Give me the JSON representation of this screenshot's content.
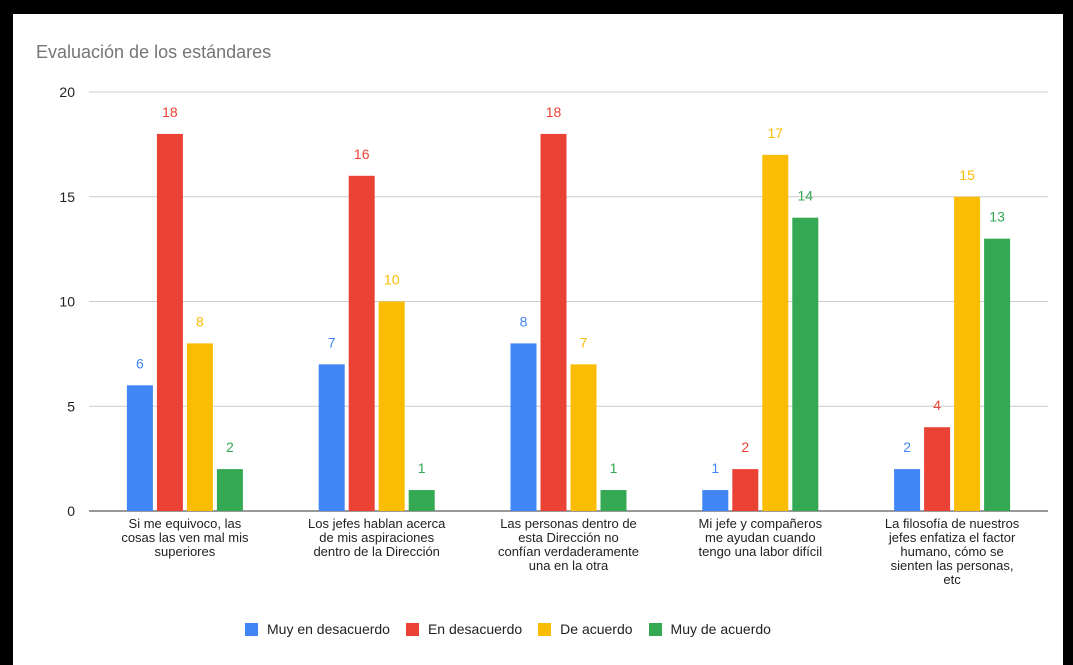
{
  "chart_data": {
    "type": "bar",
    "title": "Evaluación de los estándares",
    "categories": [
      [
        "Si me equivoco, las",
        "cosas las ven mal mis",
        "superiores"
      ],
      [
        "Los jefes hablan acerca",
        "de mis aspiraciones",
        "dentro de la Dirección"
      ],
      [
        "Las personas dentro de",
        "esta Dirección no",
        "confían verdaderamente",
        "una en la otra"
      ],
      [
        "Mi jefe y compañeros",
        "me ayudan cuando",
        "tengo una labor difícil"
      ],
      [
        "La filosofía de nuestros",
        "jefes enfatiza el factor",
        "humano, cómo se",
        "sienten las personas,",
        "etc"
      ]
    ],
    "series": [
      {
        "name": "Muy en desacuerdo",
        "color": "#4285f4",
        "values": [
          6,
          7,
          8,
          1,
          2
        ]
      },
      {
        "name": "En desacuerdo",
        "color": "#ea4335",
        "values": [
          18,
          16,
          18,
          2,
          4
        ]
      },
      {
        "name": "De acuerdo",
        "color": "#fbbc04",
        "values": [
          8,
          10,
          7,
          17,
          15
        ]
      },
      {
        "name": "Muy de acuerdo",
        "color": "#34a853",
        "values": [
          2,
          1,
          1,
          14,
          13
        ]
      }
    ],
    "ylim": [
      0,
      20
    ],
    "yticks": [
      "0",
      "5",
      "10",
      "15",
      "20"
    ],
    "grid": true,
    "legend": "bottom"
  }
}
